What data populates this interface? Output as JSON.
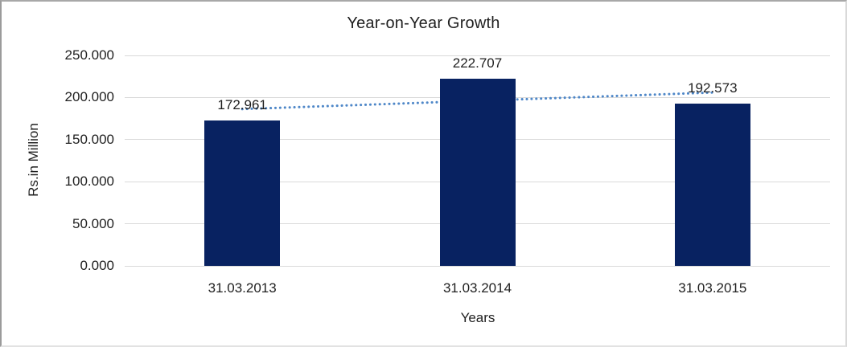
{
  "chart_data": {
    "type": "bar",
    "title": "Year-on-Year Growth",
    "xlabel": "Years",
    "ylabel": "Rs.in Million",
    "categories": [
      "31.03.2013",
      "31.03.2014",
      "31.03.2015"
    ],
    "values": [
      172.961,
      222.707,
      192.573
    ],
    "value_labels": [
      "172.961",
      "222.707",
      "192.573"
    ],
    "ylim": [
      0,
      250
    ],
    "ytick_step": 50,
    "ytick_labels": [
      "0.000",
      "50.000",
      "100.000",
      "150.000",
      "200.000",
      "250.000"
    ],
    "grid": true,
    "legend": false,
    "trendline": {
      "type": "linear",
      "style": "dotted"
    }
  },
  "colors": {
    "bar": "#082261",
    "trendline": "#4e87c8",
    "gridline": "#d9d9d9",
    "text": "#1f1f1f"
  }
}
